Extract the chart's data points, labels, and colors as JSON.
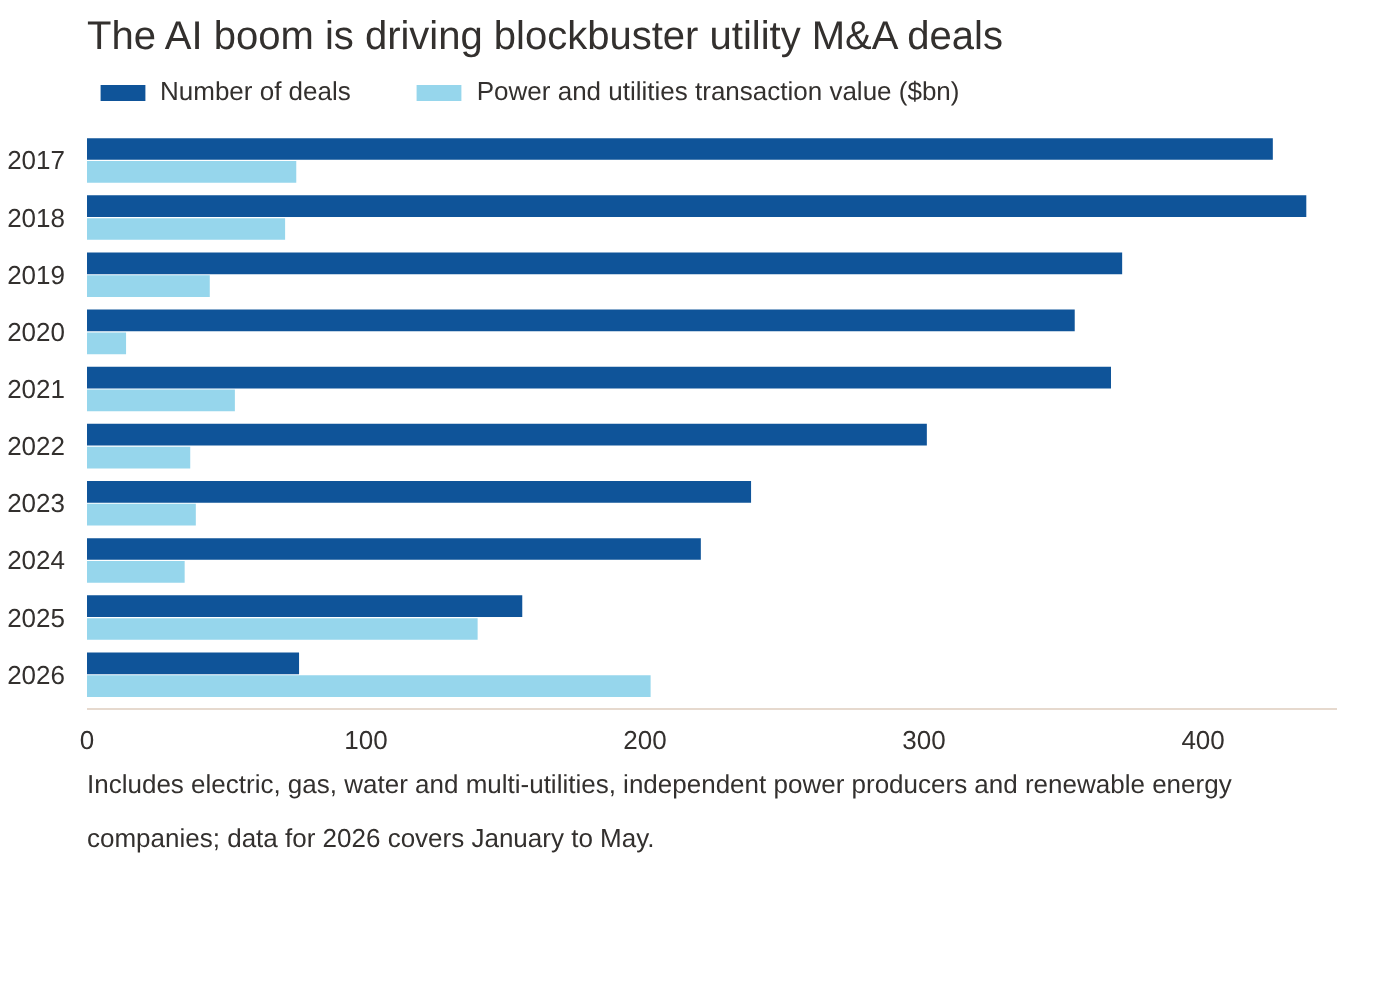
{
  "chart_data": {
    "type": "bar",
    "orientation": "horizontal",
    "title": "The AI boom is driving blockbuster utility M&A deals",
    "categories": [
      "2017",
      "2018",
      "2019",
      "2020",
      "2021",
      "2022",
      "2023",
      "2024",
      "2025",
      "2026"
    ],
    "series": [
      {
        "name": "Number of deals",
        "color": "#0f5499",
        "values": [
          425,
          437,
          371,
          354,
          367,
          301,
          238,
          220,
          156,
          76
        ]
      },
      {
        "name": "Power and utilities transaction value ($bn)",
        "color": "#96d6ec",
        "values": [
          75,
          71,
          44,
          14,
          53,
          37,
          39,
          35,
          140,
          202
        ]
      }
    ],
    "xlim": [
      0,
      448
    ],
    "xticks": [
      0,
      100,
      200,
      300,
      400
    ],
    "grid": false,
    "legend": "top left",
    "annotations": [
      "Includes electric, gas, water and multi-utilities, independent power producers and renewable energy companies; data for 2026 covers January to May."
    ]
  }
}
